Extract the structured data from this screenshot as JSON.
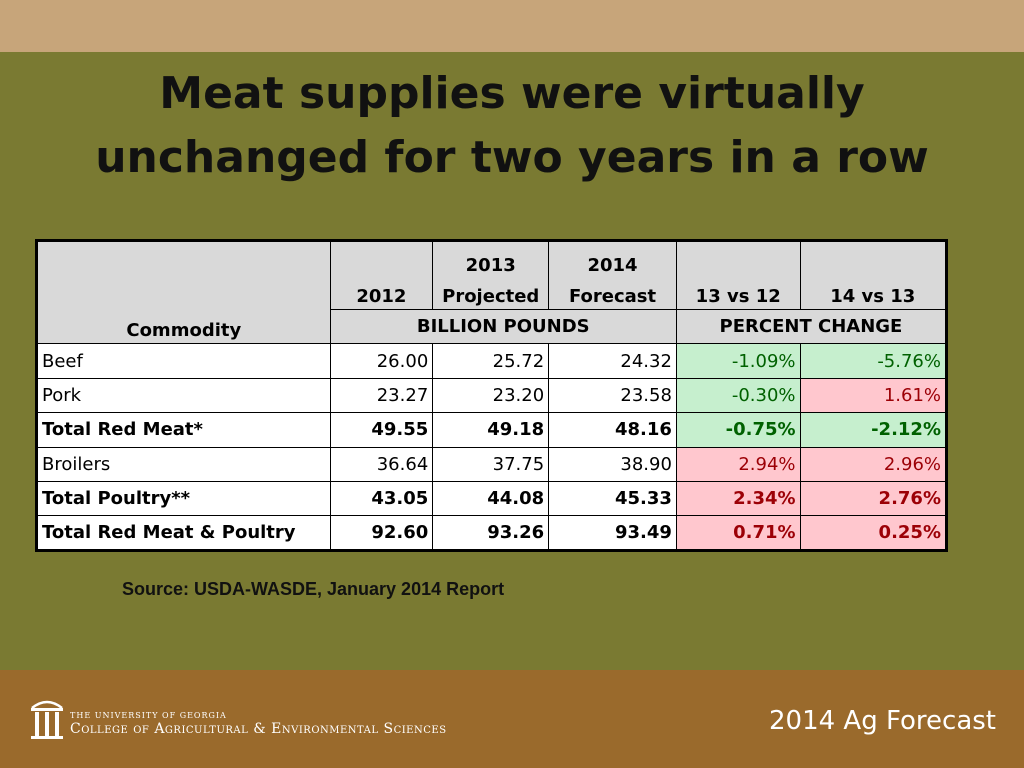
{
  "slide": {
    "title_line1": "Meat supplies were virtually",
    "title_line2": "unchanged for two years in a row"
  },
  "table": {
    "header": {
      "commodity": "Commodity",
      "col_2012": "2012",
      "col_2013_year": "2013",
      "col_2013_sub": "Projected",
      "col_2014_year": "2014",
      "col_2014_sub": "Forecast",
      "col_13vs12": "13 vs 12",
      "col_14vs13": "14 vs 13",
      "units_group": "BILLION POUNDS",
      "change_group": "PERCENT CHANGE"
    },
    "rows": [
      {
        "commodity": "Beef",
        "y2012": "26.00",
        "y2013": "25.72",
        "y2014": "24.32",
        "c13vs12": "-1.09%",
        "c14vs13": "-5.76%"
      },
      {
        "commodity": "Pork",
        "y2012": "23.27",
        "y2013": "23.20",
        "y2014": "23.58",
        "c13vs12": "-0.30%",
        "c14vs13": "1.61%"
      },
      {
        "commodity": "Total Red Meat*",
        "y2012": "49.55",
        "y2013": "49.18",
        "y2014": "48.16",
        "c13vs12": "-0.75%",
        "c14vs13": "-2.12%"
      },
      {
        "commodity": "Broilers",
        "y2012": "36.64",
        "y2013": "37.75",
        "y2014": "38.90",
        "c13vs12": "2.94%",
        "c14vs13": "2.96%"
      },
      {
        "commodity": "Total Poultry**",
        "y2012": "43.05",
        "y2013": "44.08",
        "y2014": "45.33",
        "c13vs12": "2.34%",
        "c14vs13": "2.76%"
      },
      {
        "commodity": "Total Red Meat & Poultry",
        "y2012": "92.60",
        "y2013": "93.26",
        "y2014": "93.49",
        "c13vs12": "0.71%",
        "c14vs13": "0.25%"
      }
    ]
  },
  "source": "Source: USDA-WASDE, January 2014 Report",
  "footer": {
    "university_line1": "THE UNIVERSITY OF GEORGIA",
    "university_line2": "College of Agricultural & Environmental Sciences",
    "forecast_label": "2014 Ag Forecast",
    "logo_icon": "arch-columns-icon"
  },
  "colors": {
    "background": "#7a7a32",
    "top_band": "#c7a57a",
    "footer": "#9a6a2c",
    "negative_fill": "#c6efce",
    "negative_text": "#006100",
    "positive_fill": "#ffc7ce",
    "positive_text": "#9c0006"
  }
}
